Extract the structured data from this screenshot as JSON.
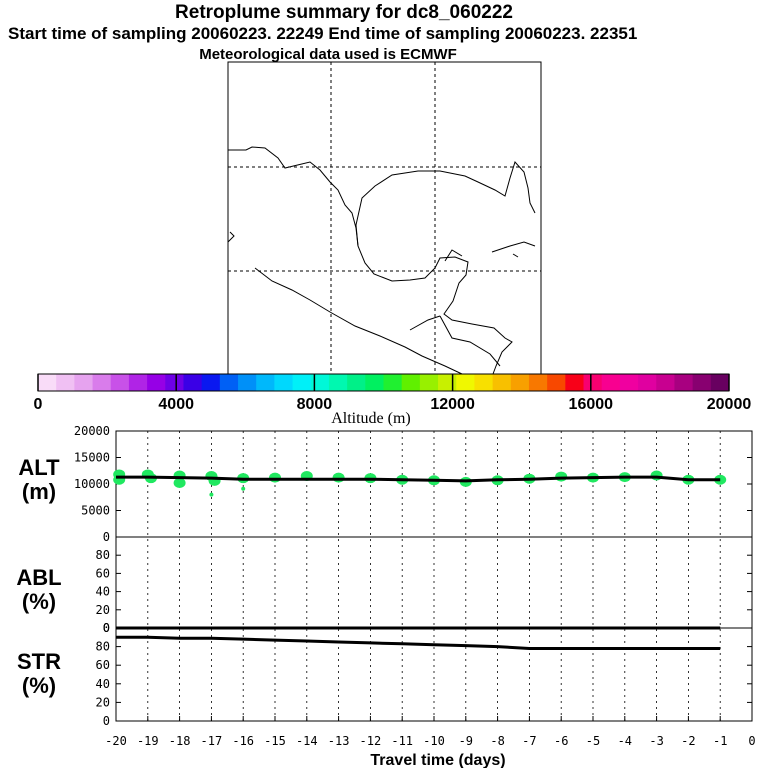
{
  "header": {
    "title": "Retroplume summary for dc8_060222",
    "sampling": "Start time of sampling 20060223. 22249     End time of sampling 20060223. 22351",
    "met": "Meteorological data used is ECMWF"
  },
  "colorbar": {
    "label": "Altitude (m)",
    "ticks": [
      "0",
      "4000",
      "8000",
      "12000",
      "16000",
      "20000"
    ],
    "colors": [
      "#f9dcf8",
      "#f0c0f3",
      "#e6a3ef",
      "#d97ceb",
      "#c851e8",
      "#b024e6",
      "#9600e6",
      "#6e00e6",
      "#3a00e6",
      "#0a18f0",
      "#0060f5",
      "#0090f8",
      "#00b8fb",
      "#00d8fd",
      "#00f0f8",
      "#00f8d8",
      "#00f8b0",
      "#00f088",
      "#00f060",
      "#20f030",
      "#60f000",
      "#98f000",
      "#c8f000",
      "#f0f800",
      "#f8e000",
      "#f8c000",
      "#f8a000",
      "#f87800",
      "#f84800",
      "#f80018",
      "#f80070",
      "#f80090",
      "#f000a0",
      "#e000a0",
      "#c80090",
      "#a80080",
      "#880070",
      "#680060"
    ]
  },
  "panels": {
    "alt_label": "ALT\n(m)",
    "abl_label": "ABL\n(%)",
    "str_label": "STR\n(%)",
    "alt_ticks": [
      "20000",
      "15000",
      "10000",
      "5000",
      "0"
    ],
    "pct_ticks": [
      "80",
      "60",
      "40",
      "20",
      "0"
    ],
    "abl_top": "0"
  },
  "chart_data": {
    "type": "line",
    "title": "Retroplume summary for dc8_060222",
    "xlabel": "Travel time (days)",
    "x_ticks": [
      "-20",
      "-19",
      "-18",
      "-17",
      "-16",
      "-15",
      "-14",
      "-13",
      "-12",
      "-11",
      "-10",
      "-9",
      "-8",
      "-7",
      "-6",
      "-5",
      "-4",
      "-3",
      "-2",
      "-1",
      "0"
    ],
    "xlim": [
      -20,
      0
    ],
    "series": [
      {
        "name": "ALT (m)",
        "ylim": [
          0,
          20000
        ],
        "x": [
          -20,
          -19,
          -18,
          -17,
          -16,
          -15,
          -14,
          -13,
          -12,
          -11,
          -10,
          -9,
          -8,
          -7,
          -6,
          -5,
          -4,
          -3,
          -2,
          -1
        ],
        "values": [
          11300,
          11300,
          11200,
          11100,
          10900,
          10900,
          10900,
          10900,
          10900,
          10800,
          10700,
          10600,
          10800,
          10900,
          11100,
          11200,
          11300,
          11300,
          10800,
          10800
        ]
      },
      {
        "name": "ABL (%)",
        "ylim": [
          0,
          100
        ],
        "x": [
          -20,
          -19,
          -18,
          -17,
          -16,
          -15,
          -14,
          -13,
          -12,
          -11,
          -10,
          -9,
          -8,
          -7,
          -6,
          -5,
          -4,
          -3,
          -2,
          -1
        ],
        "values": [
          0,
          0,
          0,
          0,
          0,
          0,
          0,
          0,
          0,
          0,
          0,
          0,
          0,
          0,
          0,
          0,
          0,
          0,
          0,
          0
        ]
      },
      {
        "name": "STR (%)",
        "ylim": [
          0,
          100
        ],
        "x": [
          -20,
          -19,
          -18,
          -17,
          -16,
          -15,
          -14,
          -13,
          -12,
          -11,
          -10,
          -9,
          -8,
          -7,
          -6,
          -5,
          -4,
          -3,
          -2,
          -1
        ],
        "values": [
          90,
          90,
          89,
          89,
          88,
          87,
          86,
          85,
          84,
          83,
          82,
          81,
          80,
          78,
          78,
          78,
          78,
          78,
          78,
          78
        ]
      }
    ],
    "scatter_alt": [
      [
        -19.9,
        11800
      ],
      [
        -19.9,
        10800
      ],
      [
        -19,
        11800
      ],
      [
        -18.9,
        11100
      ],
      [
        -18,
        11600
      ],
      [
        -18,
        10200
      ],
      [
        -17,
        11500
      ],
      [
        -16.9,
        10600
      ],
      [
        -17,
        8000
      ],
      [
        -16,
        11100
      ],
      [
        -16,
        9100
      ],
      [
        -15,
        11200
      ],
      [
        -14,
        11500
      ],
      [
        -13,
        11200
      ],
      [
        -12,
        11100
      ],
      [
        -11,
        10800
      ],
      [
        -10,
        10700
      ],
      [
        -9,
        10400
      ],
      [
        -8,
        10700
      ],
      [
        -7,
        11000
      ],
      [
        -6,
        11400
      ],
      [
        -5,
        11200
      ],
      [
        -4,
        11300
      ],
      [
        -3,
        11600
      ],
      [
        -2,
        10800
      ],
      [
        -1,
        10800
      ]
    ]
  }
}
